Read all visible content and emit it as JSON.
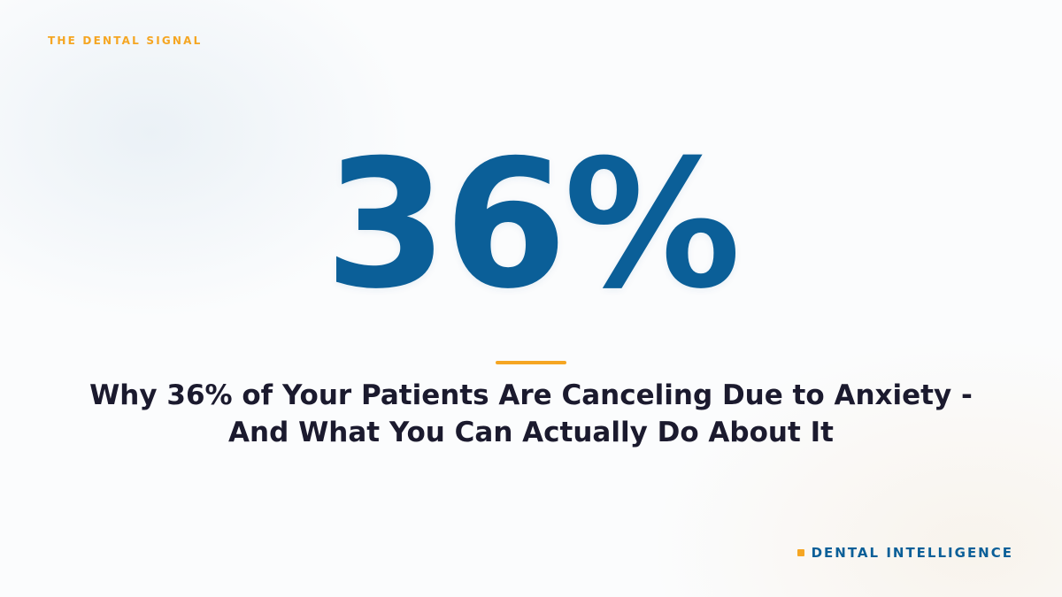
{
  "header": {
    "eyebrow": "THE DENTAL SIGNAL"
  },
  "stat": {
    "value": "36%"
  },
  "headline": "Why 36% of Your Patients Are Canceling Due to Anxiety - And What You Can Actually Do About It",
  "footer": {
    "brand_name": "DENTAL INTELLIGENCE"
  },
  "colors": {
    "primary_blue": "#0b5f98",
    "accent_orange": "#f5a623",
    "headline_text": "#1b1a2e",
    "background": "#fbfcfd"
  }
}
